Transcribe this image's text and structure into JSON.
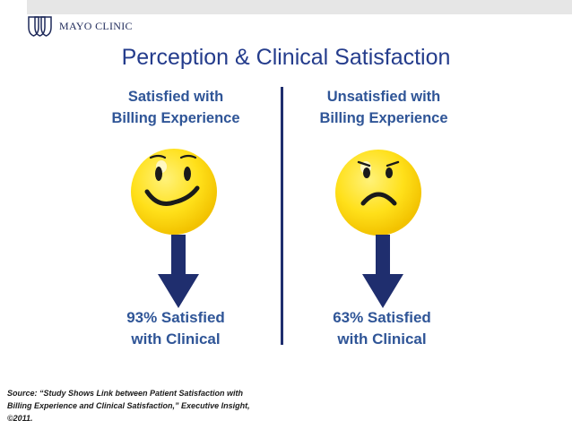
{
  "brand": {
    "name": "MAYO CLINIC",
    "logo_icon": "mayo-shield-icon"
  },
  "slide": {
    "title": "Perception & Clinical Satisfaction"
  },
  "left": {
    "heading_line1": "Satisfied with",
    "heading_line2": "Billing Experience",
    "face_icon": "happy-face-icon",
    "result_line1": "93% Satisfied",
    "result_line2": "with Clinical",
    "result_percent": 93
  },
  "right": {
    "heading_line1": "Unsatisfied with",
    "heading_line2": "Billing Experience",
    "face_icon": "sad-face-icon",
    "result_line1": "63% Satisfied",
    "result_line2": "with Clinical",
    "result_percent": 63
  },
  "source": {
    "line1": "Source: “Study Shows Link between Patient Satisfaction with",
    "line2": "Billing Experience and Clinical Satisfaction,” Executive Insight,",
    "line3": "©2011."
  },
  "colors": {
    "title": "#243c8c",
    "heading": "#2f5597",
    "arrow": "#1f2e6e",
    "face_yellow": "#ffde17",
    "divider": "#1f2e6e"
  }
}
